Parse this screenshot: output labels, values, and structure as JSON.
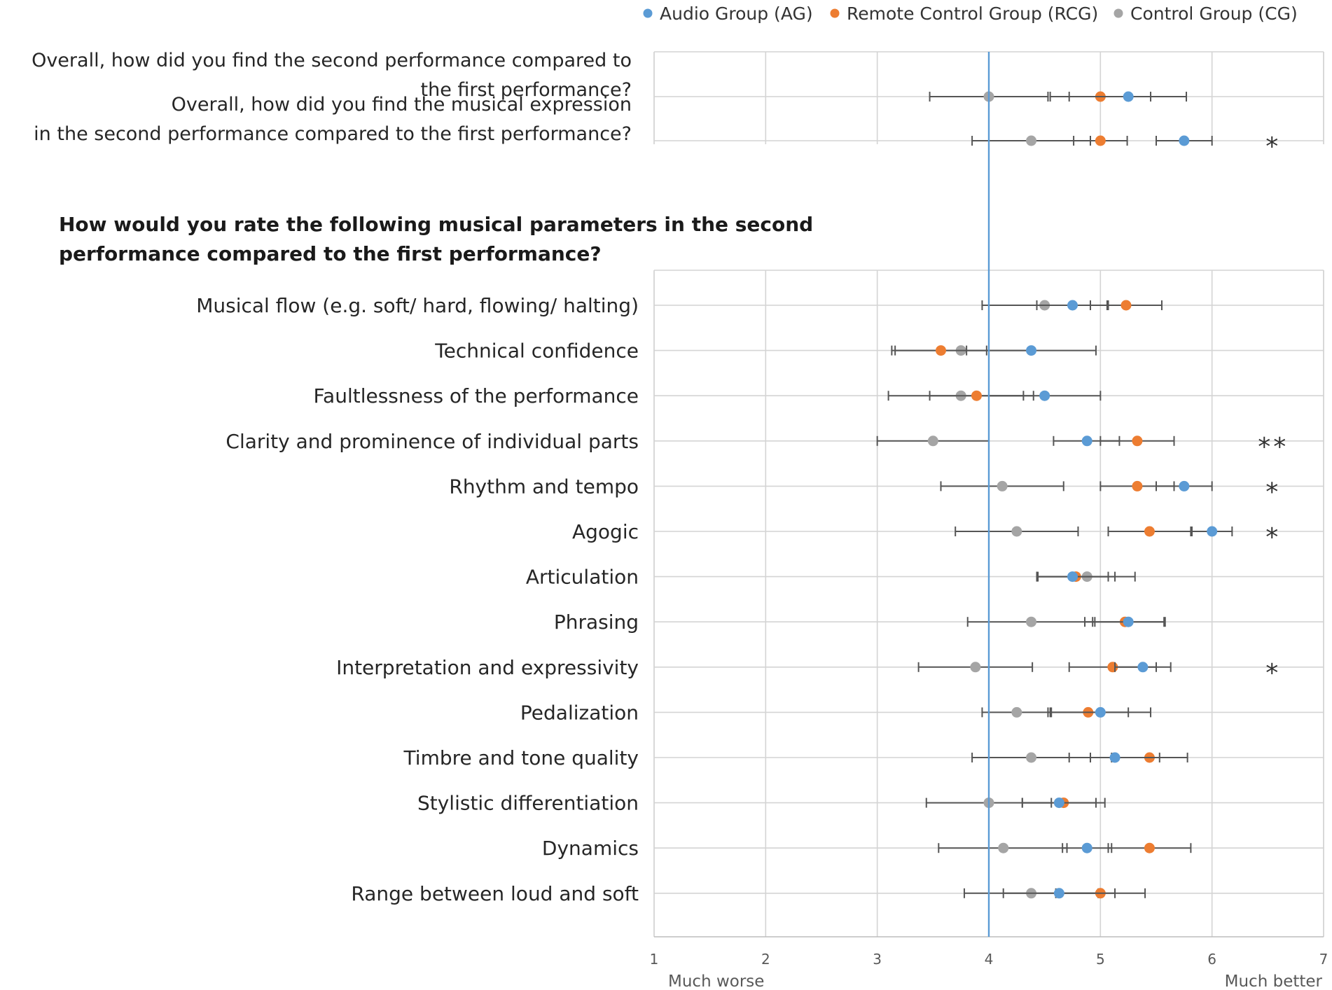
{
  "chart_data": {
    "type": "scatter",
    "subtype": "dot plot with error bars (mean ± interval)",
    "xlim": [
      1,
      7
    ],
    "x_ticks": [
      "1",
      "2",
      "3",
      "4",
      "5",
      "6",
      "7"
    ],
    "x_left_label": "Much worse",
    "x_right_label": "Much better",
    "reference_line": 4,
    "legend": [
      {
        "key": "AG",
        "label": "Audio Group (AG)",
        "color": "#5b9bd5"
      },
      {
        "key": "RCG",
        "label": "Remote Control Group (RCG)",
        "color": "#ed7d31"
      },
      {
        "key": "CG",
        "label": "Control Group (CG)",
        "color": "#a5a5a5"
      }
    ],
    "section_heading_lines": [
      "How would you rate the following musical parameters in the second",
      "performance compared to the first performance?"
    ],
    "panels": [
      {
        "items": [
          {
            "label_lines": [
              "Overall, how did you find the second performance compared to",
              "the first performance?"
            ],
            "AG": {
              "mean": 5.25,
              "lo": 4.72,
              "hi": 5.77
            },
            "RCG": {
              "mean": 5.0,
              "lo": 4.55,
              "hi": 5.45
            },
            "CG": {
              "mean": 4.0,
              "lo": 3.47,
              "hi": 4.53
            },
            "sig": ""
          },
          {
            "label_lines": [
              "Overall, how did you find the musical expression",
              "in the second performance compared to the first performance?"
            ],
            "AG": {
              "mean": 5.75,
              "lo": 5.5,
              "hi": 6.0
            },
            "RCG": {
              "mean": 5.0,
              "lo": 4.76,
              "hi": 5.24
            },
            "CG": {
              "mean": 4.38,
              "lo": 3.85,
              "hi": 4.91
            },
            "sig": "*"
          }
        ]
      },
      {
        "items": [
          {
            "label_lines": [
              "Musical flow (e.g. soft/ hard, flowing/ halting)"
            ],
            "AG": {
              "mean": 4.75,
              "lo": 4.43,
              "hi": 5.07
            },
            "RCG": {
              "mean": 5.23,
              "lo": 4.91,
              "hi": 5.55
            },
            "CG": {
              "mean": 4.5,
              "lo": 3.94,
              "hi": 5.06
            },
            "sig": ""
          },
          {
            "label_lines": [
              "Technical confidence"
            ],
            "AG": {
              "mean": 4.38,
              "lo": 3.8,
              "hi": 4.96
            },
            "RCG": {
              "mean": 3.57,
              "lo": 3.16,
              "hi": 3.98
            },
            "CG": {
              "mean": 3.75,
              "lo": 3.13,
              "hi": 4.37
            },
            "sig": ""
          },
          {
            "label_lines": [
              "Faultlessness of the performance"
            ],
            "AG": {
              "mean": 4.5,
              "lo": 4.0,
              "hi": 5.0
            },
            "RCG": {
              "mean": 3.89,
              "lo": 3.47,
              "hi": 4.31
            },
            "CG": {
              "mean": 3.75,
              "lo": 3.1,
              "hi": 4.4
            },
            "sig": ""
          },
          {
            "label_lines": [
              "Clarity and prominence of individual parts"
            ],
            "AG": {
              "mean": 4.88,
              "lo": 4.58,
              "hi": 5.17
            },
            "RCG": {
              "mean": 5.33,
              "lo": 5.0,
              "hi": 5.66
            },
            "CG": {
              "mean": 3.5,
              "lo": 3.0,
              "hi": 4.0
            },
            "sig": "**"
          },
          {
            "label_lines": [
              "Rhythm and tempo"
            ],
            "AG": {
              "mean": 5.75,
              "lo": 5.5,
              "hi": 6.0
            },
            "RCG": {
              "mean": 5.33,
              "lo": 5.0,
              "hi": 5.66
            },
            "CG": {
              "mean": 4.12,
              "lo": 3.57,
              "hi": 4.67
            },
            "sig": "*"
          },
          {
            "label_lines": [
              "Agogic"
            ],
            "AG": {
              "mean": 6.0,
              "lo": 5.82,
              "hi": 6.18
            },
            "RCG": {
              "mean": 5.44,
              "lo": 5.07,
              "hi": 5.81
            },
            "CG": {
              "mean": 4.25,
              "lo": 3.7,
              "hi": 4.8
            },
            "sig": "*"
          },
          {
            "label_lines": [
              "Articulation"
            ],
            "AG": {
              "mean": 4.75,
              "lo": 4.43,
              "hi": 5.07
            },
            "RCG": {
              "mean": 4.78,
              "lo": 4.43,
              "hi": 5.13
            },
            "CG": {
              "mean": 4.88,
              "lo": 4.44,
              "hi": 5.31
            },
            "sig": ""
          },
          {
            "label_lines": [
              "Phrasing"
            ],
            "AG": {
              "mean": 5.25,
              "lo": 4.93,
              "hi": 5.57
            },
            "RCG": {
              "mean": 5.22,
              "lo": 4.86,
              "hi": 5.58
            },
            "CG": {
              "mean": 4.38,
              "lo": 3.81,
              "hi": 4.95
            },
            "sig": ""
          },
          {
            "label_lines": [
              "Interpretation and expressivity"
            ],
            "AG": {
              "mean": 5.38,
              "lo": 5.13,
              "hi": 5.63
            },
            "RCG": {
              "mean": 5.11,
              "lo": 4.72,
              "hi": 5.5
            },
            "CG": {
              "mean": 3.88,
              "lo": 3.37,
              "hi": 4.39
            },
            "sig": "*"
          },
          {
            "label_lines": [
              "Pedalization"
            ],
            "AG": {
              "mean": 5.0,
              "lo": 4.55,
              "hi": 5.45
            },
            "RCG": {
              "mean": 4.89,
              "lo": 4.53,
              "hi": 5.25
            },
            "CG": {
              "mean": 4.25,
              "lo": 3.94,
              "hi": 4.56
            },
            "sig": ""
          },
          {
            "label_lines": [
              "Timbre and tone quality"
            ],
            "AG": {
              "mean": 5.13,
              "lo": 4.72,
              "hi": 5.53
            },
            "RCG": {
              "mean": 5.44,
              "lo": 5.1,
              "hi": 5.78
            },
            "CG": {
              "mean": 4.38,
              "lo": 3.85,
              "hi": 4.91
            },
            "sig": ""
          },
          {
            "label_lines": [
              "Stylistic differentiation"
            ],
            "AG": {
              "mean": 4.63,
              "lo": 4.3,
              "hi": 4.96
            },
            "RCG": {
              "mean": 4.67,
              "lo": 4.3,
              "hi": 5.04
            },
            "CG": {
              "mean": 4.0,
              "lo": 3.44,
              "hi": 4.56
            },
            "sig": ""
          },
          {
            "label_lines": [
              "Dynamics"
            ],
            "AG": {
              "mean": 4.88,
              "lo": 4.66,
              "hi": 5.1
            },
            "RCG": {
              "mean": 5.44,
              "lo": 5.07,
              "hi": 5.81
            },
            "CG": {
              "mean": 4.13,
              "lo": 3.55,
              "hi": 4.7
            },
            "sig": ""
          },
          {
            "label_lines": [
              "Range between loud and soft"
            ],
            "AG": {
              "mean": 4.63,
              "lo": 4.13,
              "hi": 5.13
            },
            "RCG": {
              "mean": 5.0,
              "lo": 4.6,
              "hi": 5.4
            },
            "CG": {
              "mean": 4.38,
              "lo": 3.78,
              "hi": 4.98
            },
            "sig": ""
          }
        ]
      }
    ]
  }
}
